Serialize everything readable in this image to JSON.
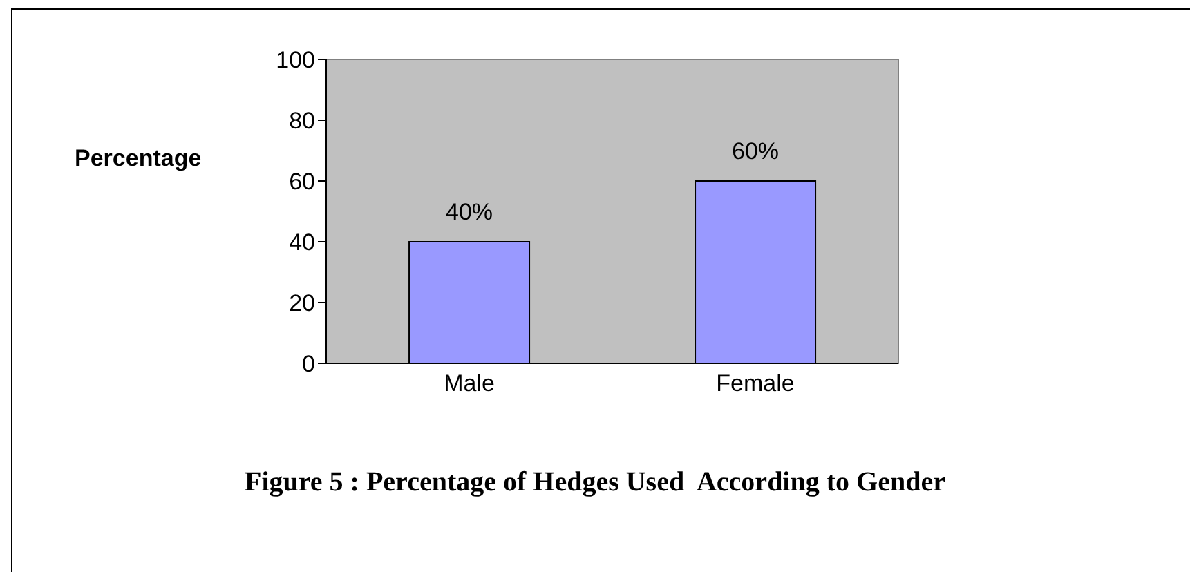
{
  "chart_data": {
    "type": "bar",
    "title": "Figure 5 : Percentage of Hedges Used  According to Gender",
    "ylabel": "Percentage",
    "categories": [
      "Male",
      "Female"
    ],
    "values": [
      40,
      60
    ],
    "value_labels": [
      "40%",
      "60%"
    ],
    "color": "#9999ff",
    "ylim": [
      0,
      100
    ],
    "yticks": [
      0,
      20,
      40,
      60,
      80,
      100
    ]
  }
}
